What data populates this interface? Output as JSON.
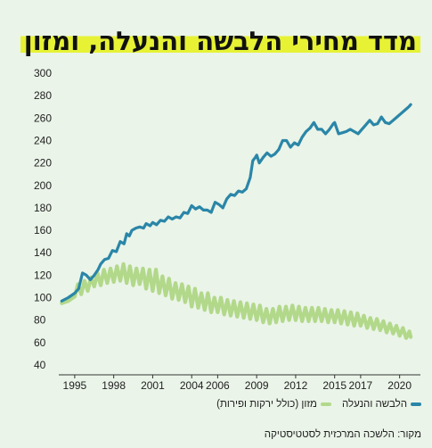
{
  "title": "מדד מחירי הלבשה והנעלה, ומזון",
  "source": "מקור: הלשכה המרכזית לסטטיסטיקה",
  "colors": {
    "background": "#eaf4e8",
    "title_highlight": "#e6f233",
    "clothing": "#2a86a8",
    "food": "#b2d88a"
  },
  "chart_data": {
    "type": "line",
    "ylim": [
      40,
      300
    ],
    "yticks": [
      40,
      60,
      80,
      100,
      120,
      140,
      160,
      180,
      200,
      220,
      240,
      260,
      280,
      300
    ],
    "xlim": [
      1993.5,
      2021.6
    ],
    "xticks": [
      1995,
      1998,
      2001,
      2004,
      2006,
      2009,
      2012,
      2015,
      2017,
      2020
    ],
    "grid": false,
    "legend_position": "bottom-right",
    "series": [
      {
        "name": "הלבשה והנעלה",
        "color": "#2a86a8",
        "points": [
          [
            1994.0,
            97
          ],
          [
            1994.5,
            100
          ],
          [
            1995.0,
            104
          ],
          [
            1995.3,
            108
          ],
          [
            1995.6,
            122
          ],
          [
            1995.9,
            120
          ],
          [
            1996.2,
            116
          ],
          [
            1996.5,
            120
          ],
          [
            1996.8,
            125
          ],
          [
            1997.0,
            130
          ],
          [
            1997.3,
            134
          ],
          [
            1997.6,
            135
          ],
          [
            1997.9,
            142
          ],
          [
            1998.2,
            141
          ],
          [
            1998.5,
            150
          ],
          [
            1998.8,
            148
          ],
          [
            1999.0,
            157
          ],
          [
            1999.2,
            155
          ],
          [
            1999.4,
            160
          ],
          [
            1999.7,
            162
          ],
          [
            2000.0,
            163
          ],
          [
            2000.3,
            162
          ],
          [
            2000.5,
            166
          ],
          [
            2000.8,
            164
          ],
          [
            2001.0,
            167
          ],
          [
            2001.3,
            165
          ],
          [
            2001.6,
            169
          ],
          [
            2001.9,
            168
          ],
          [
            2002.2,
            172
          ],
          [
            2002.5,
            170
          ],
          [
            2002.8,
            172
          ],
          [
            2003.1,
            171
          ],
          [
            2003.4,
            176
          ],
          [
            2003.7,
            175
          ],
          [
            2004.0,
            182
          ],
          [
            2004.3,
            179
          ],
          [
            2004.6,
            181
          ],
          [
            2004.9,
            178
          ],
          [
            2005.2,
            178
          ],
          [
            2005.5,
            176
          ],
          [
            2005.8,
            185
          ],
          [
            2006.1,
            183
          ],
          [
            2006.4,
            180
          ],
          [
            2006.7,
            188
          ],
          [
            2007.0,
            192
          ],
          [
            2007.3,
            191
          ],
          [
            2007.6,
            195
          ],
          [
            2007.9,
            194
          ],
          [
            2008.2,
            197
          ],
          [
            2008.5,
            207
          ],
          [
            2008.7,
            222
          ],
          [
            2008.9,
            225
          ],
          [
            2009.0,
            227
          ],
          [
            2009.2,
            220
          ],
          [
            2009.5,
            225
          ],
          [
            2009.8,
            229
          ],
          [
            2010.1,
            226
          ],
          [
            2010.4,
            228
          ],
          [
            2010.7,
            232
          ],
          [
            2011.0,
            240
          ],
          [
            2011.3,
            240
          ],
          [
            2011.6,
            234
          ],
          [
            2011.9,
            238
          ],
          [
            2012.2,
            236
          ],
          [
            2012.5,
            243
          ],
          [
            2012.8,
            248
          ],
          [
            2013.1,
            251
          ],
          [
            2013.4,
            256
          ],
          [
            2013.7,
            250
          ],
          [
            2014.0,
            250
          ],
          [
            2014.3,
            246
          ],
          [
            2014.6,
            250
          ],
          [
            2014.9,
            255
          ],
          [
            2015.0,
            256
          ],
          [
            2015.3,
            246
          ],
          [
            2015.6,
            247
          ],
          [
            2015.9,
            248
          ],
          [
            2016.2,
            250
          ],
          [
            2016.5,
            248
          ],
          [
            2016.8,
            246
          ],
          [
            2017.1,
            250
          ],
          [
            2017.4,
            254
          ],
          [
            2017.7,
            258
          ],
          [
            2018.0,
            254
          ],
          [
            2018.3,
            255
          ],
          [
            2018.6,
            261
          ],
          [
            2018.9,
            256
          ],
          [
            2019.2,
            255
          ],
          [
            2019.5,
            258
          ],
          [
            2019.8,
            261
          ],
          [
            2020.1,
            264
          ],
          [
            2020.4,
            267
          ],
          [
            2020.7,
            270
          ],
          [
            2020.85,
            272
          ]
        ]
      },
      {
        "name": "מזון (כולל ירקות ופירות)",
        "color": "#b2d88a",
        "points": [
          [
            1994.0,
            95
          ],
          [
            1994.5,
            97
          ],
          [
            1995.0,
            101
          ],
          [
            1995.25,
            112
          ],
          [
            1995.5,
            103
          ],
          [
            1995.75,
            115
          ],
          [
            1996.0,
            106
          ],
          [
            1996.25,
            118
          ],
          [
            1996.5,
            110
          ],
          [
            1996.75,
            122
          ],
          [
            1997.0,
            111
          ],
          [
            1997.25,
            125
          ],
          [
            1997.5,
            113
          ],
          [
            1997.75,
            126
          ],
          [
            1998.0,
            114
          ],
          [
            1998.25,
            128
          ],
          [
            1998.5,
            115
          ],
          [
            1998.75,
            130
          ],
          [
            1999.0,
            113
          ],
          [
            1999.25,
            128
          ],
          [
            1999.5,
            111
          ],
          [
            1999.75,
            126
          ],
          [
            2000.0,
            112
          ],
          [
            2000.25,
            126
          ],
          [
            2000.5,
            108
          ],
          [
            2000.75,
            125
          ],
          [
            2001.0,
            106
          ],
          [
            2001.25,
            125
          ],
          [
            2001.5,
            104
          ],
          [
            2001.75,
            119
          ],
          [
            2002.0,
            102
          ],
          [
            2002.25,
            117
          ],
          [
            2002.5,
            99
          ],
          [
            2002.75,
            113
          ],
          [
            2003.0,
            98
          ],
          [
            2003.25,
            112
          ],
          [
            2003.5,
            96
          ],
          [
            2003.75,
            110
          ],
          [
            2004.0,
            92
          ],
          [
            2004.25,
            108
          ],
          [
            2004.5,
            91
          ],
          [
            2004.75,
            104
          ],
          [
            2005.0,
            89
          ],
          [
            2005.25,
            104
          ],
          [
            2005.5,
            87
          ],
          [
            2005.75,
            100
          ],
          [
            2006.0,
            87
          ],
          [
            2006.25,
            100
          ],
          [
            2006.5,
            85
          ],
          [
            2006.75,
            98
          ],
          [
            2007.0,
            84
          ],
          [
            2007.25,
            97
          ],
          [
            2007.5,
            83
          ],
          [
            2007.75,
            96
          ],
          [
            2008.0,
            82
          ],
          [
            2008.25,
            95
          ],
          [
            2008.5,
            81
          ],
          [
            2008.75,
            94
          ],
          [
            2009.0,
            80
          ],
          [
            2009.25,
            93
          ],
          [
            2009.5,
            78
          ],
          [
            2009.75,
            90
          ],
          [
            2010.0,
            77
          ],
          [
            2010.25,
            90
          ],
          [
            2010.5,
            78
          ],
          [
            2010.75,
            92
          ],
          [
            2011.0,
            79
          ],
          [
            2011.25,
            92
          ],
          [
            2011.5,
            80
          ],
          [
            2011.75,
            93
          ],
          [
            2012.0,
            80
          ],
          [
            2012.25,
            92
          ],
          [
            2012.5,
            79
          ],
          [
            2012.75,
            91
          ],
          [
            2013.0,
            79
          ],
          [
            2013.25,
            91
          ],
          [
            2013.5,
            79
          ],
          [
            2013.75,
            91
          ],
          [
            2014.0,
            79
          ],
          [
            2014.25,
            90
          ],
          [
            2014.5,
            78
          ],
          [
            2014.75,
            89
          ],
          [
            2015.0,
            78
          ],
          [
            2015.25,
            89
          ],
          [
            2015.5,
            77
          ],
          [
            2015.75,
            88
          ],
          [
            2016.0,
            76
          ],
          [
            2016.25,
            87
          ],
          [
            2016.5,
            75
          ],
          [
            2016.75,
            86
          ],
          [
            2017.0,
            75
          ],
          [
            2017.25,
            84
          ],
          [
            2017.5,
            73
          ],
          [
            2017.75,
            82
          ],
          [
            2018.0,
            72
          ],
          [
            2018.25,
            81
          ],
          [
            2018.5,
            71
          ],
          [
            2018.75,
            79
          ],
          [
            2019.0,
            69
          ],
          [
            2019.25,
            77
          ],
          [
            2019.5,
            68
          ],
          [
            2019.75,
            75
          ],
          [
            2020.0,
            66
          ],
          [
            2020.25,
            73
          ],
          [
            2020.5,
            64
          ],
          [
            2020.75,
            70
          ],
          [
            2020.85,
            65
          ]
        ]
      }
    ]
  }
}
